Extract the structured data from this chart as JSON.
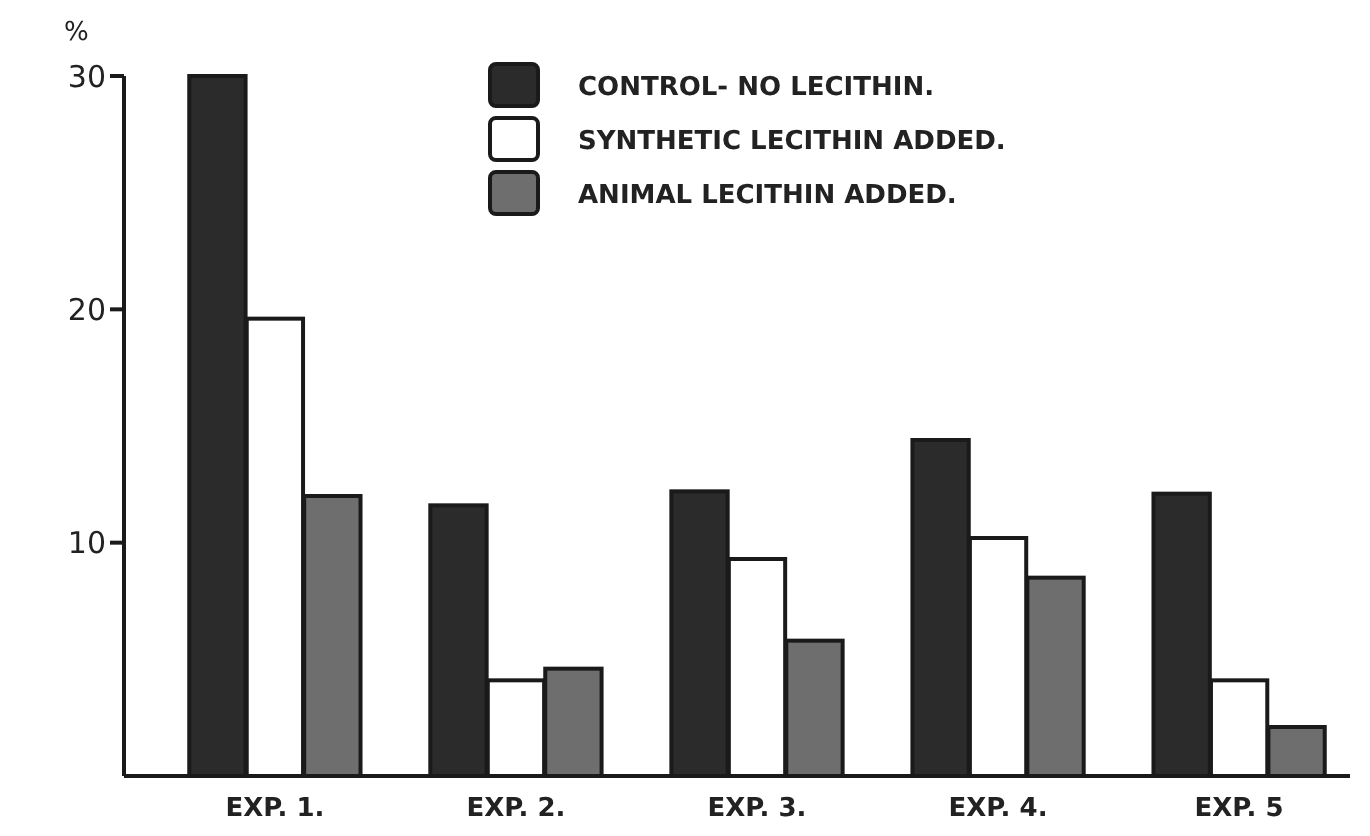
{
  "chart_data": {
    "type": "bar",
    "ylabel": "%",
    "categories": [
      "EXP. 1.",
      "EXP. 2.",
      "EXP. 3.",
      "EXP. 4.",
      "EXP. 5"
    ],
    "series": [
      {
        "name": "CONTROL- NO LECITHIN.",
        "color": "#2b2b2b",
        "values": [
          30,
          11.6,
          12.2,
          14.4,
          12.1
        ]
      },
      {
        "name": "SYNTHETIC LECITHIN ADDED.",
        "color": "#ffffff",
        "values": [
          19.6,
          4.1,
          9.3,
          10.2,
          4.1
        ]
      },
      {
        "name": "ANIMAL LECITHIN ADDED.",
        "color": "#6e6e6e",
        "values": [
          12,
          4.6,
          5.8,
          8.5,
          2.1
        ]
      }
    ],
    "ylim": [
      0,
      30
    ],
    "yticks": [
      10,
      20,
      30
    ],
    "grid": false,
    "legend": "top right"
  }
}
